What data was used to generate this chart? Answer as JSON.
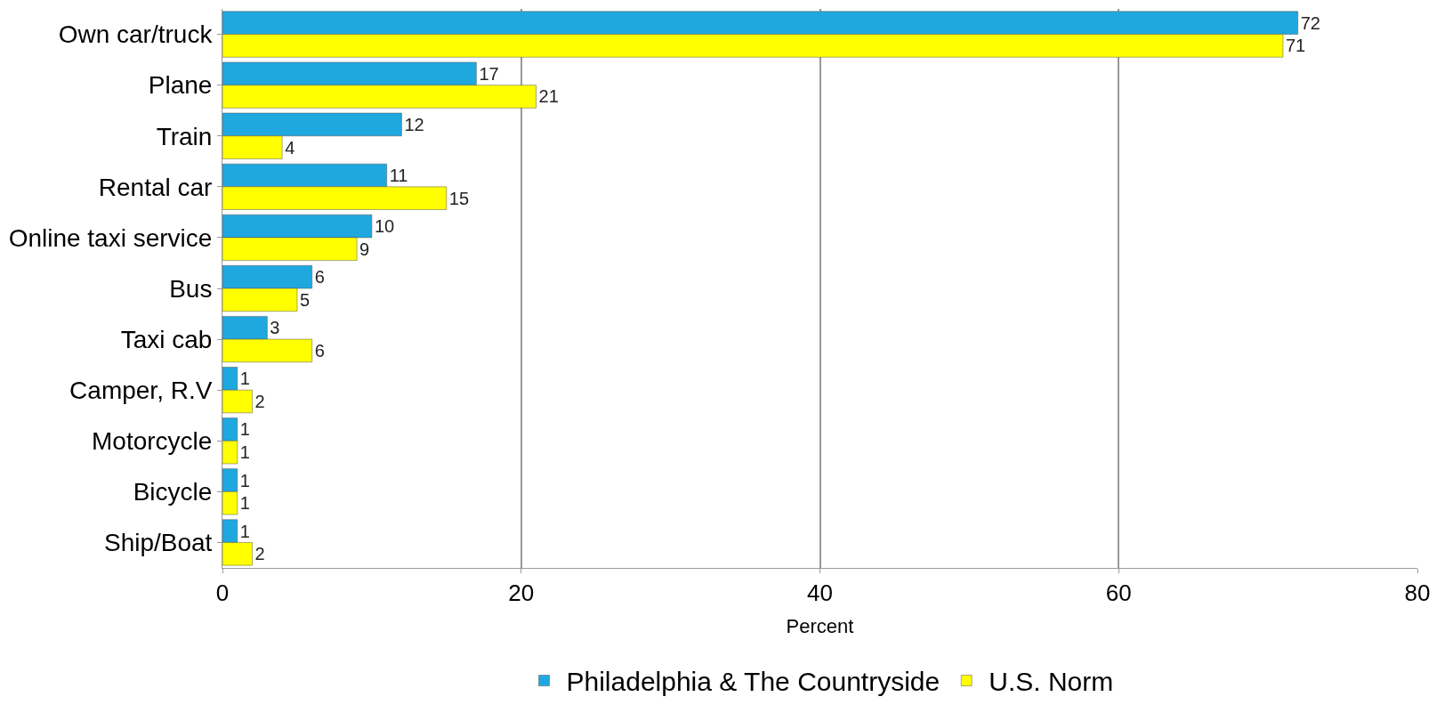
{
  "chart_data": {
    "type": "bar",
    "orientation": "horizontal",
    "categories": [
      "Own car/truck",
      "Plane",
      "Train",
      "Rental car",
      "Online taxi service",
      "Bus",
      "Taxi cab",
      "Camper, R.V",
      "Motorcycle",
      "Bicycle",
      "Ship/Boat"
    ],
    "series": [
      {
        "name": "Philadelphia & The Countryside",
        "color": "#1fa8e0",
        "values": [
          72,
          17,
          12,
          11,
          10,
          6,
          3,
          1,
          1,
          1,
          1
        ]
      },
      {
        "name": "U.S. Norm",
        "color": "#ffff00",
        "values": [
          71,
          21,
          4,
          15,
          9,
          5,
          6,
          2,
          1,
          1,
          2
        ]
      }
    ],
    "xlabel": "Percent",
    "xlim": [
      0,
      80
    ],
    "xticks": [
      0,
      20,
      40,
      60,
      80
    ],
    "grid": "x",
    "legend": "bottom",
    "data_labels": true
  }
}
